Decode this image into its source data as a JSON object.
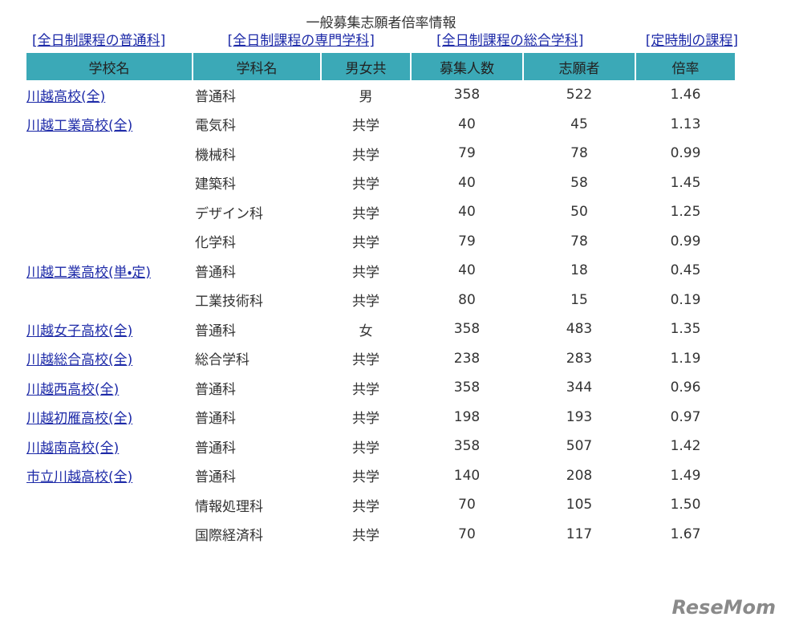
{
  "header": {
    "title": "一般募集志願者倍率情報",
    "links": [
      "[全日制課程の普通科]",
      "[全日制課程の専門学科]",
      "[全日制課程の総合学科]",
      "[定時制の課程]"
    ]
  },
  "table": {
    "columns": [
      "学校名",
      "学科名",
      "男女共",
      "募集人数",
      "志願者",
      "倍率"
    ],
    "rows": [
      [
        "川越高校(全)",
        "普通科",
        "男",
        358,
        522,
        "1.46"
      ],
      [
        "川越工業高校(全)",
        "電気科",
        "共学",
        40,
        45,
        "1.13"
      ],
      [
        null,
        "機械科",
        "共学",
        79,
        78,
        "0.99"
      ],
      [
        null,
        "建築科",
        "共学",
        40,
        58,
        "1.45"
      ],
      [
        null,
        "デザイン科",
        "共学",
        40,
        50,
        "1.25"
      ],
      [
        null,
        "化学科",
        "共学",
        79,
        78,
        "0.99"
      ],
      [
        "川越工業高校(単・定)",
        "普通科",
        "共学",
        40,
        18,
        "0.45"
      ],
      [
        null,
        "工業技術科",
        "共学",
        80,
        15,
        "0.19"
      ],
      [
        "川越女子高校(全)",
        "普通科",
        "女",
        358,
        483,
        "1.35"
      ],
      [
        "川越総合高校(全)",
        "総合学科",
        "共学",
        238,
        283,
        "1.19"
      ],
      [
        "川越西高校(全)",
        "普通科",
        "共学",
        358,
        344,
        "0.96"
      ],
      [
        "川越初雁高校(全)",
        "普通科",
        "共学",
        198,
        193,
        "0.97"
      ],
      [
        "川越南高校(全)",
        "普通科",
        "共学",
        358,
        507,
        "1.42"
      ],
      [
        "市立川越高校(全)",
        "普通科",
        "共学",
        140,
        208,
        "1.49"
      ],
      [
        null,
        "情報処理科",
        "共学",
        70,
        105,
        "1.50"
      ],
      [
        null,
        "国際経済科",
        "共学",
        70,
        117,
        "1.67"
      ]
    ]
  },
  "watermark": "ReseMom"
}
